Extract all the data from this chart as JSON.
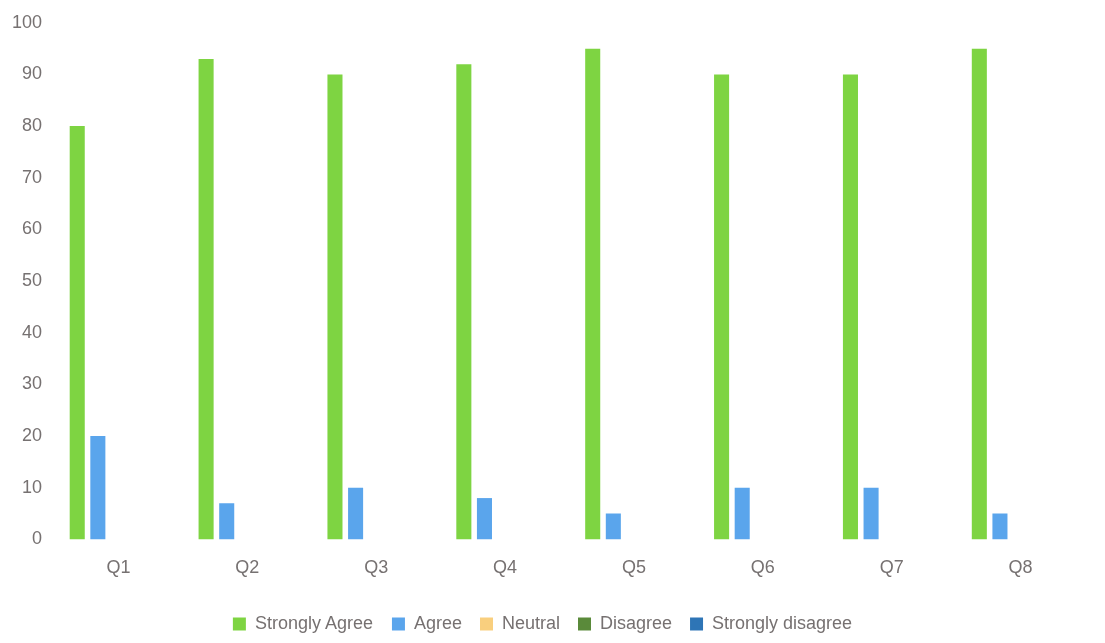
{
  "chart_data": {
    "type": "bar",
    "categories": [
      "Q1",
      "Q2",
      "Q3",
      "Q4",
      "Q5",
      "Q6",
      "Q7",
      "Q8"
    ],
    "series": [
      {
        "name": "Strongly Agree",
        "color": "#7ed442",
        "values": [
          80,
          93,
          90,
          92,
          95,
          90,
          90,
          95
        ]
      },
      {
        "name": "Agree",
        "color": "#5aa5ec",
        "values": [
          20,
          7,
          10,
          8,
          5,
          10,
          10,
          5
        ]
      },
      {
        "name": "Neutral",
        "color": "#f9cf7e",
        "values": [
          0,
          0,
          0,
          0,
          0,
          0,
          0,
          0
        ]
      },
      {
        "name": "Disagree",
        "color": "#5a8a3a",
        "values": [
          0,
          0,
          0,
          0,
          0,
          0,
          0,
          0
        ]
      },
      {
        "name": "Strongly disagree",
        "color": "#2e75b6",
        "values": [
          0,
          0,
          0,
          0,
          0,
          0,
          0,
          0
        ]
      }
    ],
    "ylim": [
      0,
      100
    ],
    "yticks": [
      0,
      10,
      20,
      30,
      40,
      50,
      60,
      70,
      80,
      90,
      100
    ],
    "grid": false,
    "legend": "bottom"
  }
}
